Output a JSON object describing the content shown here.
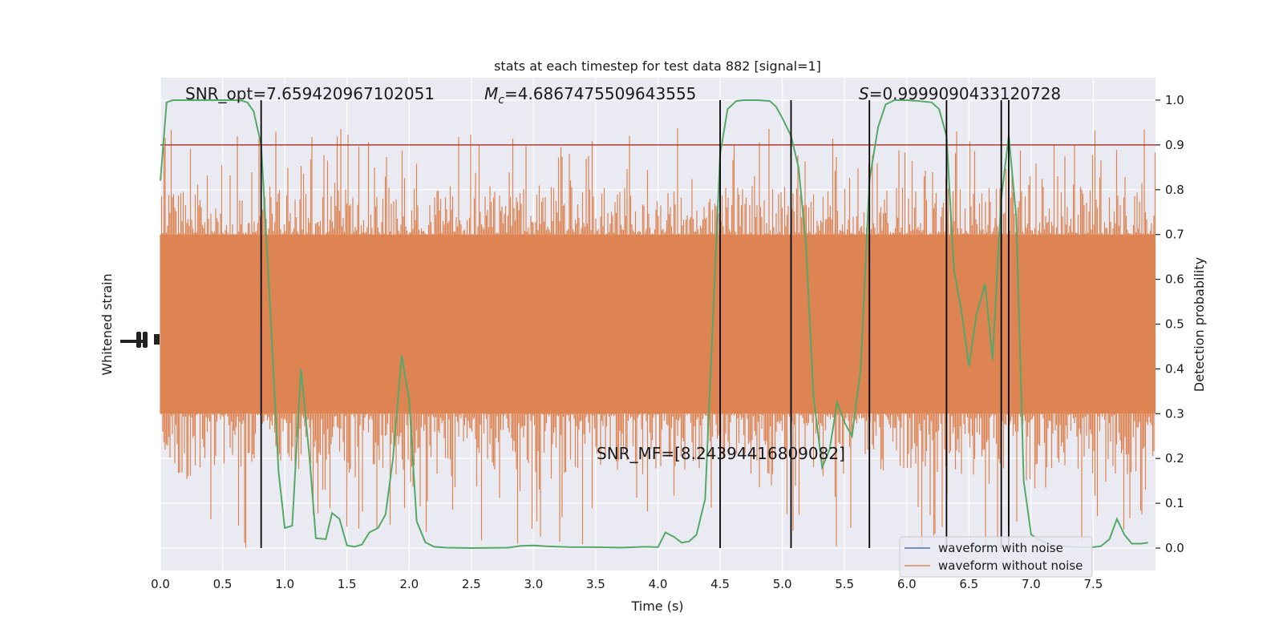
{
  "chart_data": {
    "type": "line",
    "title": "stats at each timestep for test data 882 [signal=1]",
    "xlabel": "Time (s)",
    "ylabel": "Whitened strain",
    "y2label": "Detection probability",
    "xlim": [
      0.0,
      8.0
    ],
    "y2lim": [
      -0.05,
      1.05
    ],
    "x_ticks": [
      "0.0",
      "0.5",
      "1.0",
      "1.5",
      "2.0",
      "2.5",
      "3.0",
      "3.5",
      "4.0",
      "4.5",
      "5.0",
      "5.5",
      "6.0",
      "6.5",
      "7.0",
      "7.5"
    ],
    "y2_ticks": [
      "0.0",
      "0.1",
      "0.2",
      "0.3",
      "0.4",
      "0.5",
      "0.6",
      "0.7",
      "0.8",
      "0.9",
      "1.0"
    ],
    "grid": true,
    "legend_position": "lower-right",
    "background_color": "#EAEAF2",
    "annotations": {
      "snr_opt": "SNR_opt=7.659420967102051",
      "mc_symbol": "M",
      "mc_subscript": "c",
      "mc_value": "=4.6867475509643555",
      "s_symbol": "S",
      "s_value": "=0.9999090433120728",
      "snr_mf": "SNR_MF=[8.24394416809082]"
    },
    "threshold": {
      "value": 0.9,
      "color": "#B03A2E"
    },
    "vertical_lines": {
      "x": [
        0.81,
        4.5,
        5.07,
        5.7,
        6.32,
        6.76,
        6.82
      ],
      "ymin": 0.0,
      "ymax": 1.0,
      "color": "#000000"
    },
    "series": [
      {
        "name": "waveform with noise",
        "color": "#4C72B0",
        "values": []
      },
      {
        "name": "waveform without noise",
        "color": "#DD8452",
        "band_low": 0.3,
        "band_high": 0.7,
        "spike_low": 0.0,
        "spike_high": 0.94
      },
      {
        "color": "#55A868",
        "x": [
          0.0,
          0.05,
          0.1,
          0.2,
          0.3,
          0.4,
          0.5,
          0.6,
          0.65,
          0.7,
          0.75,
          0.81,
          0.88,
          0.95,
          1.0,
          1.06,
          1.13,
          1.2,
          1.25,
          1.33,
          1.38,
          1.44,
          1.5,
          1.56,
          1.62,
          1.68,
          1.75,
          1.81,
          1.87,
          1.94,
          2.0,
          2.06,
          2.13,
          2.2,
          2.3,
          2.5,
          2.8,
          2.9,
          3.0,
          3.1,
          3.3,
          3.5,
          3.7,
          3.9,
          4.0,
          4.06,
          4.13,
          4.19,
          4.25,
          4.31,
          4.38,
          4.44,
          4.5,
          4.56,
          4.63,
          4.69,
          4.8,
          4.9,
          4.95,
          5.0,
          5.07,
          5.13,
          5.19,
          5.25,
          5.32,
          5.38,
          5.44,
          5.5,
          5.56,
          5.63,
          5.7,
          5.77,
          5.83,
          5.9,
          6.0,
          6.1,
          6.2,
          6.26,
          6.32,
          6.38,
          6.44,
          6.5,
          6.56,
          6.63,
          6.69,
          6.76,
          6.82,
          6.88,
          6.94,
          7.0,
          7.06,
          7.13,
          7.19,
          7.25,
          7.31,
          7.38,
          7.44,
          7.5,
          7.56,
          7.63,
          7.69,
          7.75,
          7.81,
          7.88,
          7.94
        ],
        "y": [
          0.82,
          0.995,
          1.0,
          1.0,
          1.0,
          1.0,
          1.0,
          1.0,
          0.999,
          0.995,
          0.975,
          0.9,
          0.55,
          0.17,
          0.045,
          0.05,
          0.4,
          0.2,
          0.022,
          0.02,
          0.078,
          0.065,
          0.006,
          0.003,
          0.008,
          0.035,
          0.045,
          0.075,
          0.2,
          0.43,
          0.33,
          0.06,
          0.013,
          0.003,
          0.001,
          0.0,
          0.001,
          0.005,
          0.006,
          0.004,
          0.002,
          0.002,
          0.001,
          0.003,
          0.002,
          0.035,
          0.025,
          0.012,
          0.015,
          0.03,
          0.11,
          0.5,
          0.88,
          0.98,
          0.998,
          1.0,
          1.0,
          0.998,
          0.985,
          0.96,
          0.92,
          0.85,
          0.68,
          0.34,
          0.18,
          0.22,
          0.325,
          0.28,
          0.25,
          0.4,
          0.82,
          0.94,
          0.99,
          1.0,
          1.0,
          0.998,
          0.995,
          0.98,
          0.92,
          0.62,
          0.53,
          0.405,
          0.52,
          0.59,
          0.42,
          0.78,
          0.92,
          0.74,
          0.15,
          0.03,
          0.02,
          0.01,
          0.005,
          0.004,
          0.003,
          0.002,
          0.002,
          0.002,
          0.004,
          0.02,
          0.065,
          0.03,
          0.01,
          0.01,
          0.012
        ]
      }
    ]
  }
}
